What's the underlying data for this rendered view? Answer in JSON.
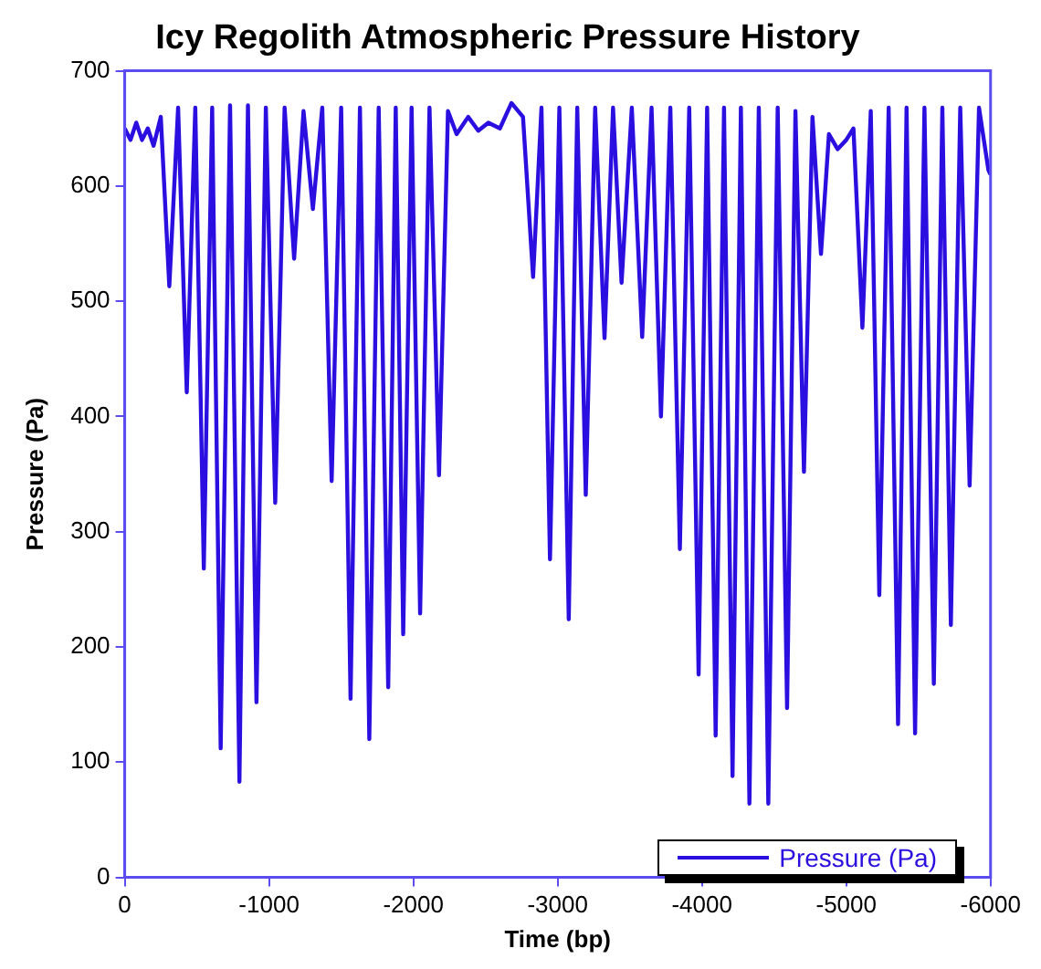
{
  "chart_data": {
    "type": "line",
    "title": "Icy Regolith Atmospheric Pressure History",
    "xlabel": "Time (bp)",
    "ylabel": "Pressure (Pa)",
    "xlim": [
      0,
      -6000
    ],
    "xticks": [
      0,
      -1000,
      -2000,
      -3000,
      -4000,
      -5000,
      -6000
    ],
    "ylim": [
      0,
      700
    ],
    "yticks": [
      0,
      100,
      200,
      300,
      400,
      500,
      600,
      700
    ],
    "grid": false,
    "legend": "bottom right",
    "marker": "none",
    "line_style": "solid",
    "series": [
      {
        "name": "Pressure (Pa)",
        "color": "#2a0fe0",
        "x": [
          0,
          -40,
          -80,
          -120,
          -160,
          -200,
          -250,
          -309,
          -370,
          -430,
          -489,
          -548,
          -606,
          -665,
          -730,
          -795,
          -854,
          -913,
          -978,
          -1043,
          -1108,
          -1174,
          -1239,
          -1304,
          -1369,
          -1434,
          -1500,
          -1565,
          -1630,
          -1695,
          -1760,
          -1826,
          -1878,
          -1930,
          -1988,
          -2047,
          -2112,
          -2178,
          -2240,
          -2300,
          -2380,
          -2450,
          -2520,
          -2600,
          -2680,
          -2760,
          -2830,
          -2888,
          -2947,
          -3012,
          -3077,
          -3136,
          -3195,
          -3260,
          -3325,
          -3384,
          -3443,
          -3514,
          -3586,
          -3651,
          -3716,
          -3781,
          -3847,
          -3912,
          -3977,
          -4036,
          -4095,
          -4153,
          -4212,
          -4270,
          -4329,
          -4394,
          -4460,
          -4525,
          -4590,
          -4648,
          -4707,
          -4766,
          -4825,
          -4880,
          -4940,
          -5000,
          -5050,
          -5112,
          -5170,
          -5229,
          -5294,
          -5359,
          -5418,
          -5477,
          -5542,
          -5607,
          -5666,
          -5725,
          -5790,
          -5855,
          -5920,
          -5985,
          -6000
        ],
        "values": [
          650,
          640,
          655,
          640,
          650,
          635,
          660,
          513,
          668,
          421,
          668,
          268,
          668,
          112,
          670,
          83,
          670,
          152,
          668,
          325,
          668,
          537,
          665,
          580,
          668,
          344,
          668,
          155,
          668,
          120,
          668,
          165,
          668,
          211,
          668,
          229,
          668,
          349,
          665,
          645,
          660,
          648,
          655,
          650,
          672,
          660,
          521,
          668,
          276,
          668,
          224,
          668,
          332,
          668,
          468,
          668,
          516,
          668,
          469,
          668,
          400,
          668,
          285,
          668,
          176,
          668,
          123,
          668,
          88,
          668,
          64,
          668,
          64,
          668,
          147,
          665,
          352,
          660,
          541,
          645,
          632,
          640,
          650,
          477,
          665,
          245,
          668,
          133,
          668,
          125,
          668,
          168,
          668,
          219,
          668,
          340,
          668,
          614,
          610
        ]
      }
    ]
  }
}
